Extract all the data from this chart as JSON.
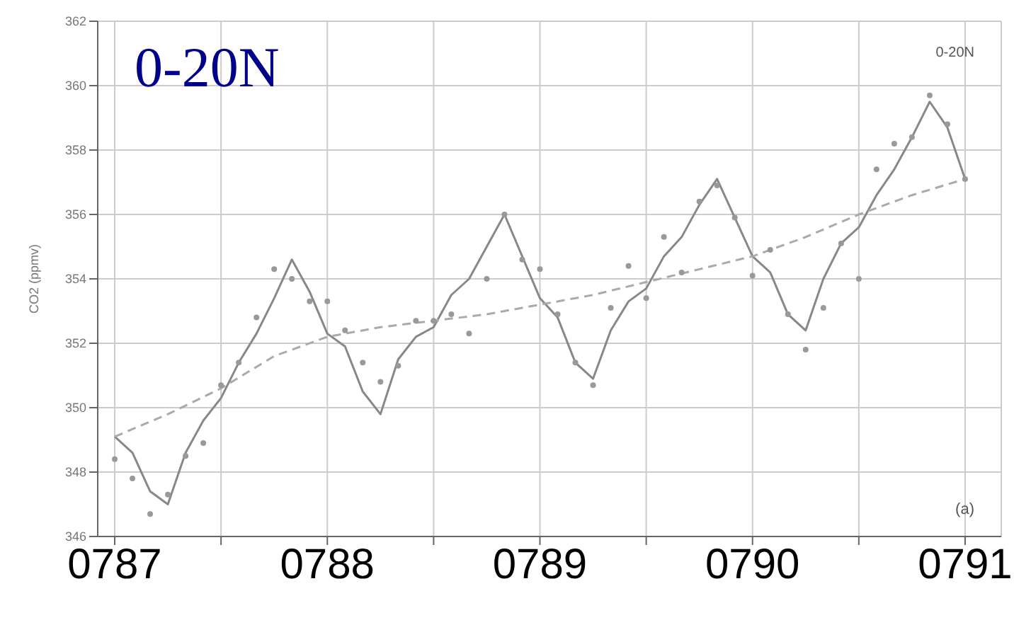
{
  "chart_data": {
    "type": "line",
    "title": "0-20N",
    "ylabel": "CO2 (ppmv)",
    "annotations": [
      "0-20N",
      "(a)"
    ],
    "xlim": [
      786.92,
      791.17
    ],
    "xticks": [
      {
        "value": 787,
        "label": "0787"
      },
      {
        "value": 787.5,
        "label": null
      },
      {
        "value": 788,
        "label": "0788"
      },
      {
        "value": 788.5,
        "label": null
      },
      {
        "value": 789,
        "label": "0789"
      },
      {
        "value": 789.5,
        "label": null
      },
      {
        "value": 790,
        "label": "0790"
      },
      {
        "value": 790.5,
        "label": null
      },
      {
        "value": 791,
        "label": "0791"
      }
    ],
    "ylim": [
      346,
      362
    ],
    "yticks": [
      346,
      348,
      350,
      352,
      354,
      356,
      358,
      360,
      362
    ],
    "grid": true,
    "series": [
      {
        "type": "scatter",
        "color": "#999999",
        "marker": "circle",
        "x": [
          787,
          787.0833,
          787.1667,
          787.25,
          787.3333,
          787.4167,
          787.5,
          787.5833,
          787.6667,
          787.75,
          787.8333,
          787.9167,
          788,
          788.0833,
          788.1667,
          788.25,
          788.3333,
          788.4167,
          788.5,
          788.5833,
          788.6667,
          788.75,
          788.8333,
          788.9167,
          789,
          789.0833,
          789.1667,
          789.25,
          789.3333,
          789.4167,
          789.5,
          789.5833,
          789.6667,
          789.75,
          789.8333,
          789.9167,
          790,
          790.0833,
          790.1667,
          790.25,
          790.3333,
          790.4167,
          790.5,
          790.5833,
          790.6667,
          790.75,
          790.8333,
          790.9167,
          791
        ],
        "values": [
          348.4,
          347.8,
          346.7,
          347.3,
          348.5,
          348.9,
          350.7,
          351.4,
          352.8,
          354.3,
          354.0,
          353.3,
          353.3,
          352.4,
          351.4,
          350.8,
          351.3,
          352.7,
          352.7,
          352.9,
          352.3,
          354.0,
          356.0,
          354.6,
          354.3,
          352.9,
          351.4,
          350.7,
          353.1,
          354.4,
          353.4,
          355.3,
          354.2,
          356.4,
          356.9,
          355.9,
          354.1,
          354.9,
          352.9,
          351.8,
          353.1,
          355.1,
          354.0,
          357.4,
          358.2,
          358.4,
          359.7,
          358.8,
          357.1
        ]
      },
      {
        "color": "#888888",
        "marker": "none",
        "line_style": "solid",
        "x": [
          787,
          787.0833,
          787.1667,
          787.25,
          787.3333,
          787.4167,
          787.5,
          787.5833,
          787.6667,
          787.75,
          787.8333,
          787.9167,
          788,
          788.0833,
          788.1667,
          788.25,
          788.3333,
          788.4167,
          788.5,
          788.5833,
          788.6667,
          788.75,
          788.8333,
          788.9167,
          789,
          789.0833,
          789.1667,
          789.25,
          789.3333,
          789.4167,
          789.5,
          789.5833,
          789.6667,
          789.75,
          789.8333,
          789.9167,
          790,
          790.0833,
          790.1667,
          790.25,
          790.3333,
          790.4167,
          790.5,
          790.5833,
          790.6667,
          790.75,
          790.8333,
          790.9167,
          791
        ],
        "values": [
          349.1,
          348.6,
          347.4,
          347.0,
          348.6,
          349.6,
          350.3,
          351.4,
          352.3,
          353.4,
          354.6,
          353.6,
          352.3,
          351.9,
          350.5,
          349.8,
          351.5,
          352.2,
          352.5,
          353.5,
          354.0,
          355.0,
          356.0,
          354.7,
          353.4,
          352.8,
          351.4,
          350.9,
          352.4,
          353.3,
          353.7,
          354.7,
          355.3,
          356.3,
          357.1,
          355.9,
          354.7,
          354.2,
          352.9,
          352.4,
          354.0,
          355.1,
          355.6,
          356.6,
          357.4,
          358.4,
          359.5,
          358.7,
          357.1
        ]
      },
      {
        "color": "#aaaaaa",
        "marker": "none",
        "line_style": "dashed",
        "x": [
          787,
          787.25,
          787.5,
          787.75,
          788,
          788.25,
          788.5,
          788.75,
          789,
          789.25,
          789.5,
          789.75,
          790,
          790.25,
          790.5,
          790.75,
          791
        ],
        "values": [
          349.1,
          349.8,
          350.6,
          351.6,
          352.2,
          352.5,
          352.7,
          352.9,
          353.2,
          353.5,
          353.9,
          354.3,
          354.7,
          355.3,
          356.0,
          356.6,
          357.1
        ]
      }
    ]
  }
}
